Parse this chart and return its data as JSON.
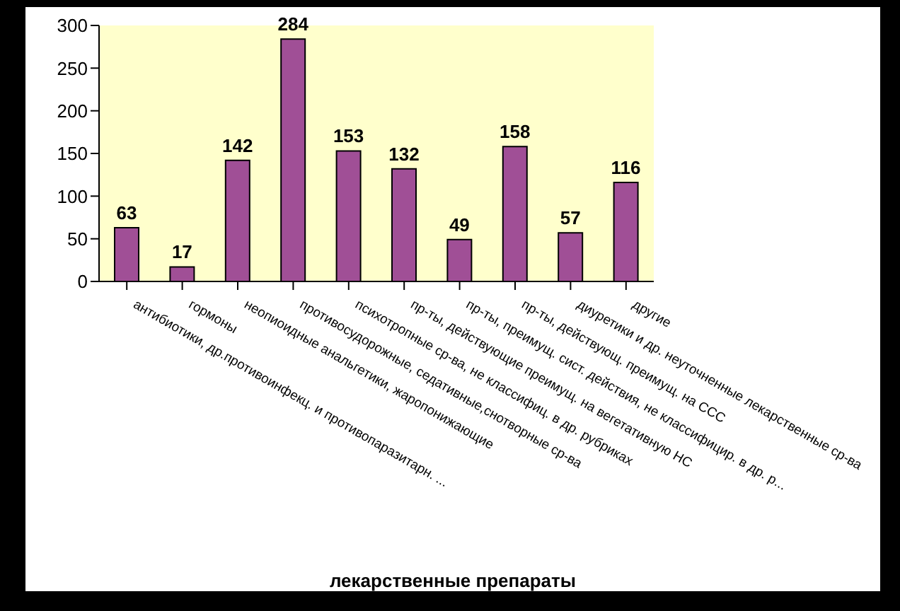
{
  "chart_data": {
    "type": "bar",
    "xlabel": "лекарственные препараты",
    "categories": [
      "антибиотики, др.противоинфекц. и противопаразитарн. ...",
      "гормоны",
      "неопиоидные анальгетики, жаропонижающие",
      "противосудорожные, седативные,снотворные ср-ва",
      "психотропные ср-ва, не классифиц. в др. рубриках",
      "пр-ты, действующие преимущ. на вегетативную НС",
      "пр-ты, преимущ. сист. действия, не классифицир. в др. р...",
      "пр-ты, действующ. преимущ. на ССС",
      "диуретики и др. неуточненные лекарственные ср-ва",
      "другие"
    ],
    "values": [
      63,
      17,
      142,
      284,
      153,
      132,
      49,
      158,
      57,
      116
    ],
    "color": "#a04f96",
    "ylim": [
      0,
      300
    ],
    "yticks": [
      0,
      50,
      100,
      150,
      200,
      250,
      300
    ],
    "data_labels": true,
    "grid": false,
    "legend": false
  }
}
